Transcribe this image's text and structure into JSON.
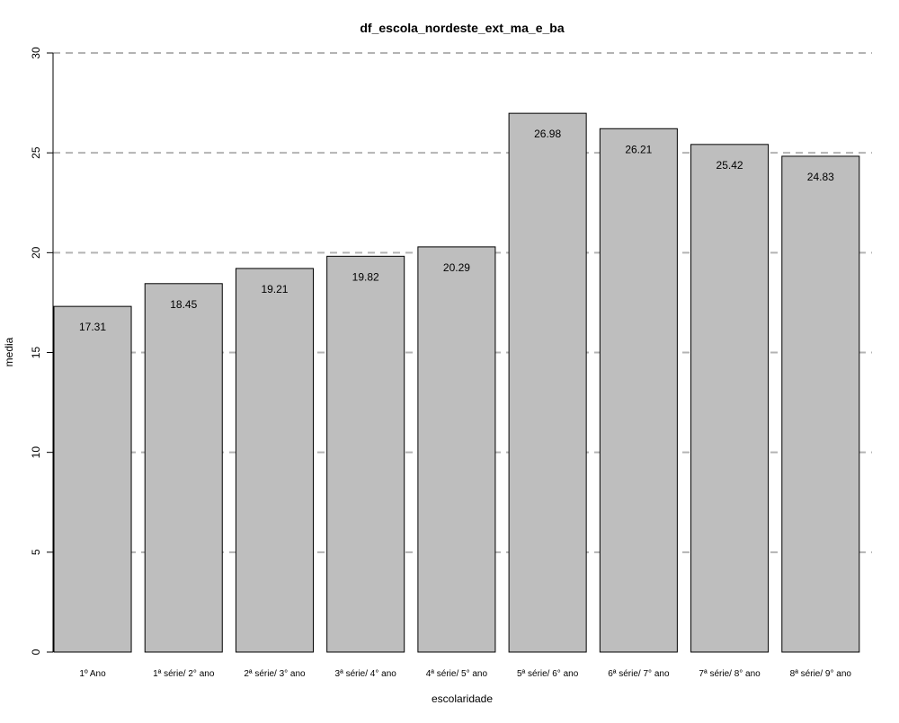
{
  "chart_data": {
    "type": "bar",
    "title": "df_escola_nordeste_ext_ma_e_ba",
    "xlabel": "escolaridade",
    "ylabel": "media",
    "categories": [
      "1º Ano",
      "1ª série/ 2° ano",
      "2ª série/ 3° ano",
      "3ª série/ 4° ano",
      "4ª série/ 5° ano",
      "5ª série/ 6° ano",
      "6ª série/ 7° ano",
      "7ª série/ 8° ano",
      "8ª série/ 9° ano"
    ],
    "values": [
      17.31,
      18.45,
      19.21,
      19.82,
      20.29,
      26.98,
      26.21,
      25.42,
      24.83
    ],
    "data_labels": [
      "17.31",
      "18.45",
      "19.21",
      "19.82",
      "20.29",
      "26.98",
      "26.21",
      "25.42",
      "24.83"
    ],
    "ylim": [
      0,
      30
    ],
    "y_ticks": [
      0,
      5,
      10,
      15,
      20,
      25,
      30
    ],
    "grid": "horizontal dashed",
    "legend": "none",
    "colors": {
      "bar_fill": "#bebebe",
      "bar_stroke": "#000000",
      "grid": "#b3b3b3",
      "axis": "#000000"
    }
  }
}
